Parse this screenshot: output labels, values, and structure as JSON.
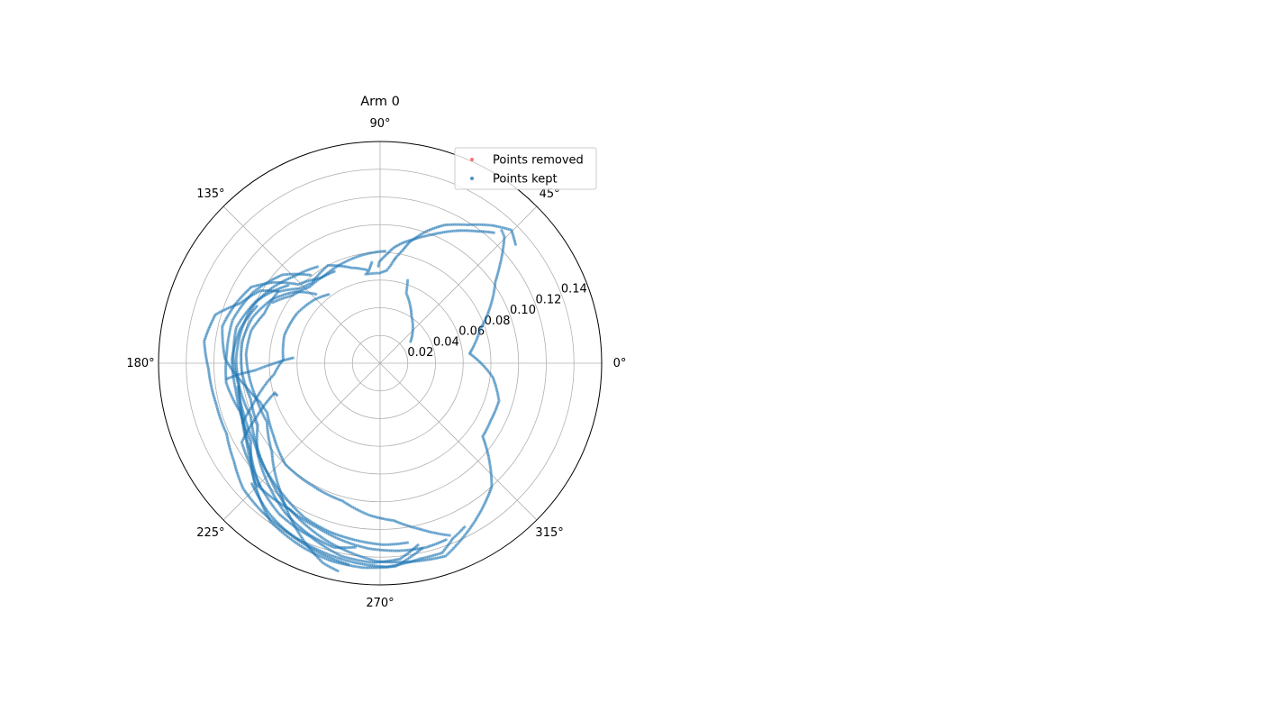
{
  "chart_data": [
    {
      "type": "scatter",
      "projection": "polar",
      "title": "Arm 0",
      "theta_ticks": [
        "0°",
        "45°",
        "90°",
        "135°",
        "180°",
        "225°",
        "270°",
        "315°"
      ],
      "r_ticks": [
        "0.02",
        "0.04",
        "0.06",
        "0.08",
        "0.10",
        "0.12",
        "0.14"
      ],
      "r_tick_values": [
        0.02,
        0.04,
        0.06,
        0.08,
        0.1,
        0.12,
        0.14
      ],
      "rlim": [
        0,
        0.16
      ],
      "r_label_angle_deg": 22.5,
      "grid": true,
      "legend": {
        "placement": "upper-right",
        "entries": [
          {
            "label": "Points removed",
            "color": "#ff4d4d"
          },
          {
            "label": "Points kept",
            "color": "#1f77b4"
          }
        ]
      },
      "series": [
        {
          "name": "Points kept",
          "color": "#1f77b4",
          "trajectories": [
            [
              [
                41.2,
                0.13
              ],
              [
                45.4,
                0.135
              ],
              [
                51.0,
                0.128
              ],
              [
                57.8,
                0.118
              ],
              [
                65.0,
                0.11
              ],
              [
                70.6,
                0.101
              ],
              [
                76.3,
                0.09
              ],
              [
                78.7,
                0.083
              ],
              [
                81.5,
                0.077
              ],
              [
                82.4,
                0.075
              ],
              [
                83.8,
                0.071
              ],
              [
                86.0,
                0.067
              ],
              [
                90.4,
                0.065
              ],
              [
                94.8,
                0.065
              ],
              [
                99.2,
                0.065
              ],
              [
                97.0,
                0.067
              ],
              [
                94.7,
                0.073
              ]
            ],
            [
              [
                48.9,
                0.125
              ],
              [
                53.8,
                0.118
              ],
              [
                60.3,
                0.11
              ],
              [
                68.0,
                0.1
              ],
              [
                74.5,
                0.093
              ],
              [
                79.7,
                0.088
              ],
              [
                83.2,
                0.084
              ],
              [
                86.3,
                0.079
              ],
              [
                89.9,
                0.074
              ],
              [
                90.5,
                0.073
              ],
              [
                91.0,
                0.07
              ]
            ],
            [
              [
                47.5,
                0.13
              ],
              [
                45.5,
                0.128
              ],
              [
                38.6,
                0.11
              ],
              [
                35.3,
                0.102
              ],
              [
                18.5,
                0.076
              ],
              [
                6.2,
                0.065
              ],
              [
                352.9,
                0.082
              ],
              [
                342.5,
                0.09
              ],
              [
                332.5,
                0.09
              ],
              [
                324.5,
                0.091
              ],
              [
                312.2,
                0.12
              ],
              [
                288.8,
                0.147
              ],
              [
                269.2,
                0.143
              ],
              [
                253.6,
                0.134
              ],
              [
                238.4,
                0.124
              ],
              [
                224.0,
                0.125
              ],
              [
                218.0,
                0.119
              ],
              [
                209.7,
                0.115
              ],
              [
                203.8,
                0.098
              ],
              [
                195.7,
                0.079
              ],
              [
                197.2,
                0.078
              ]
            ],
            [
              [
                71.6,
                0.063
              ],
              [
                69.5,
                0.054
              ],
              [
                56.4,
                0.041
              ],
              [
                35.4,
                0.027
              ]
            ],
            [
              [
                98.1,
                0.068
              ],
              [
                106.9,
                0.072
              ],
              [
                118.1,
                0.08
              ],
              [
                130.5,
                0.076
              ],
              [
                137.0,
                0.079
              ],
              [
                144.4,
                0.089
              ],
              [
                148.8,
                0.101
              ],
              [
                156.9,
                0.11
              ],
              [
                163.6,
                0.124
              ],
              [
                172.9,
                0.128
              ],
              [
                181.9,
                0.124
              ],
              [
                193.8,
                0.122
              ],
              [
                204.7,
                0.122
              ],
              [
                213.7,
                0.127
              ],
              [
                222.4,
                0.134
              ],
              [
                231.6,
                0.137
              ],
              [
                241.7,
                0.139
              ],
              [
                251.5,
                0.142
              ],
              [
                262.5,
                0.145
              ],
              [
                272.0,
                0.147
              ],
              [
                281.8,
                0.144
              ],
              [
                288.1,
                0.144
              ],
              [
                292.5,
                0.137
              ],
              [
                297.3,
                0.133
              ]
            ],
            [
              [
                116.5,
                0.074
              ],
              [
                125.0,
                0.075
              ],
              [
                136.1,
                0.082
              ],
              [
                143.1,
                0.097
              ],
              [
                149.4,
                0.108
              ],
              [
                158.0,
                0.113
              ],
              [
                166.9,
                0.117
              ],
              [
                178.3,
                0.112
              ],
              [
                189.2,
                0.099
              ],
              [
                198.0,
                0.091
              ],
              [
                203.6,
                0.089
              ],
              [
                214.1,
                0.093
              ],
              [
                226.8,
                0.1
              ],
              [
                241.1,
                0.101
              ],
              [
                254.7,
                0.103
              ],
              [
                266.0,
                0.11
              ],
              [
                275.0,
                0.114
              ],
              [
                283.4,
                0.123
              ],
              [
                292.0,
                0.134
              ]
            ],
            [
              [
                128.3,
                0.081
              ],
              [
                137.8,
                0.095
              ],
              [
                150.8,
                0.105
              ],
              [
                163.7,
                0.111
              ],
              [
                175.8,
                0.111
              ],
              [
                187.3,
                0.112
              ],
              [
                199.0,
                0.107
              ],
              [
                211.1,
                0.109
              ],
              [
                222.7,
                0.124
              ],
              [
                235.3,
                0.139
              ],
              [
                246.9,
                0.144
              ],
              [
                256.1,
                0.147
              ],
              [
                265.2,
                0.148
              ],
              [
                274.4,
                0.147
              ],
              [
                282.8,
                0.137
              ]
            ],
            [
              [
                132.9,
                0.068
              ],
              [
                139.9,
                0.08
              ],
              [
                149.8,
                0.091
              ],
              [
                160.5,
                0.098
              ],
              [
                171.6,
                0.101
              ],
              [
                183.5,
                0.1
              ],
              [
                195.4,
                0.097
              ],
              [
                206.8,
                0.099
              ],
              [
                216.5,
                0.11
              ],
              [
                227.3,
                0.119
              ],
              [
                237.7,
                0.128
              ],
              [
                247.8,
                0.134
              ],
              [
                256.0,
                0.137
              ],
              [
                262.3,
                0.134
              ]
            ],
            [
              [
                139.8,
                0.087
              ],
              [
                153.2,
                0.1
              ],
              [
                166.0,
                0.107
              ],
              [
                178.4,
                0.106
              ],
              [
                190.2,
                0.103
              ],
              [
                202.4,
                0.101
              ],
              [
                213.6,
                0.107
              ],
              [
                226.3,
                0.115
              ],
              [
                237.4,
                0.124
              ],
              [
                249.0,
                0.127
              ],
              [
                258.5,
                0.131
              ],
              [
                266.5,
                0.134
              ],
              [
                275.6,
                0.136
              ],
              [
                284.1,
                0.137
              ],
              [
                290.5,
                0.136
              ]
            ],
            [
              [
                144.8,
                0.09
              ],
              [
                156.8,
                0.091
              ],
              [
                165.8,
                0.096
              ],
              [
                176.1,
                0.097
              ],
              [
                186.1,
                0.095
              ],
              [
                195.5,
                0.093
              ],
              [
                207.4,
                0.092
              ],
              [
                219.3,
                0.101
              ],
              [
                231.2,
                0.116
              ],
              [
                239.9,
                0.129
              ],
              [
                247.1,
                0.14
              ],
              [
                254.1,
                0.15
              ],
              [
                258.5,
                0.153
              ]
            ],
            [
              [
                123.0,
                0.083
              ],
              [
                134.3,
                0.088
              ],
              [
                145.0,
                0.095
              ],
              [
                156.3,
                0.101
              ],
              [
                166.9,
                0.103
              ],
              [
                178.3,
                0.104
              ],
              [
                188.5,
                0.103
              ],
              [
                199.3,
                0.106
              ],
              [
                210.7,
                0.112
              ],
              [
                223.0,
                0.122
              ],
              [
                236.3,
                0.131
              ],
              [
                248.3,
                0.135
              ],
              [
                258.6,
                0.142
              ],
              [
                268.0,
                0.144
              ],
              [
                275.8,
                0.142
              ],
              [
                281.8,
                0.134
              ]
            ],
            [
              [
                126.8,
                0.062
              ],
              [
                136.1,
                0.066
              ],
              [
                149.3,
                0.07
              ],
              [
                163.8,
                0.072
              ],
              [
                177.8,
                0.07
              ],
              [
                186.0,
                0.077
              ],
              [
                193.5,
                0.089
              ],
              [
                198.8,
                0.098
              ],
              [
                203.3,
                0.108
              ]
            ],
            [
              [
                87.5,
                0.081
              ],
              [
                100.0,
                0.079
              ],
              [
                110.9,
                0.077
              ],
              [
                121.7,
                0.075
              ],
              [
                132.7,
                0.075
              ],
              [
                142.4,
                0.08
              ],
              [
                150.5,
                0.089
              ]
            ],
            [
              [
                185.8,
                0.111
              ],
              [
                184.4,
                0.101
              ],
              [
                183.2,
                0.09
              ],
              [
                180.0,
                0.076
              ],
              [
                176.5,
                0.063
              ]
            ],
            [
              [
                189.4,
                0.104
              ],
              [
                199.8,
                0.105
              ],
              [
                211.4,
                0.107
              ],
              [
                223.3,
                0.113
              ],
              [
                233.7,
                0.118
              ],
              [
                243.9,
                0.124
              ],
              [
                253.3,
                0.127
              ],
              [
                262.6,
                0.129
              ],
              [
                271.0,
                0.131
              ],
              [
                278.7,
                0.131
              ]
            ],
            [
              [
                223.2,
                0.127
              ],
              [
                233.8,
                0.135
              ],
              [
                243.1,
                0.14
              ],
              [
                252.9,
                0.144
              ],
              [
                261.0,
                0.147
              ]
            ],
            [
              [
                155.2,
                0.098
              ],
              [
                166.2,
                0.104
              ],
              [
                178.3,
                0.107
              ],
              [
                190.5,
                0.106
              ],
              [
                202.5,
                0.107
              ],
              [
                214.0,
                0.113
              ],
              [
                225.5,
                0.124
              ]
            ]
          ]
        },
        {
          "name": "Points removed",
          "color": "#ff4d4d",
          "trajectories": []
        }
      ]
    }
  ],
  "figure": {
    "title": "Arm 0"
  }
}
